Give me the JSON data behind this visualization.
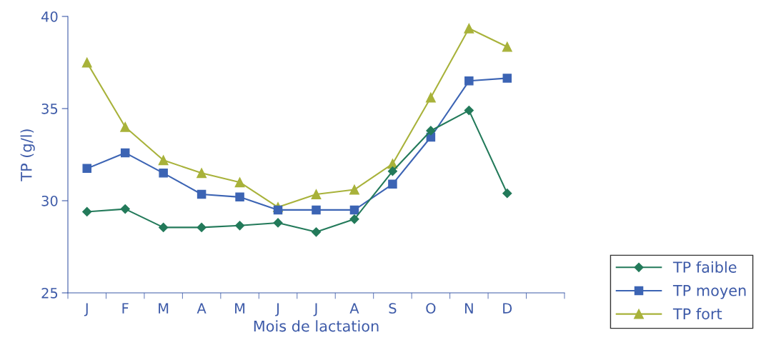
{
  "chart_data": {
    "type": "line",
    "xlabel": "Mois de lactation",
    "ylabel": "TP (g/l)",
    "categories": [
      "J",
      "F",
      "M",
      "A",
      "M",
      "J",
      "J",
      "A",
      "S",
      "O",
      "N",
      "D",
      null
    ],
    "series": [
      {
        "name": "TP faible",
        "color": "#237a5a",
        "marker": "diamond",
        "values": [
          29.4,
          29.55,
          28.55,
          28.55,
          28.65,
          28.8,
          28.3,
          29.0,
          31.6,
          33.8,
          34.9,
          30.4,
          null
        ]
      },
      {
        "name": "TP moyen",
        "color": "#3c64b4",
        "marker": "square",
        "values": [
          31.75,
          32.6,
          31.5,
          30.35,
          30.2,
          29.5,
          29.5,
          29.5,
          30.9,
          33.45,
          36.5,
          36.65,
          null
        ]
      },
      {
        "name": "TP fort",
        "color": "#a8b23a",
        "marker": "triangle",
        "values": [
          37.5,
          34.0,
          32.2,
          31.5,
          31.0,
          29.65,
          30.35,
          30.6,
          32.0,
          35.6,
          39.35,
          38.35,
          null
        ]
      }
    ],
    "ylim": [
      25,
      40
    ],
    "yticks": [
      25,
      30,
      35,
      40
    ],
    "grid": false,
    "legend": "bottom right"
  }
}
